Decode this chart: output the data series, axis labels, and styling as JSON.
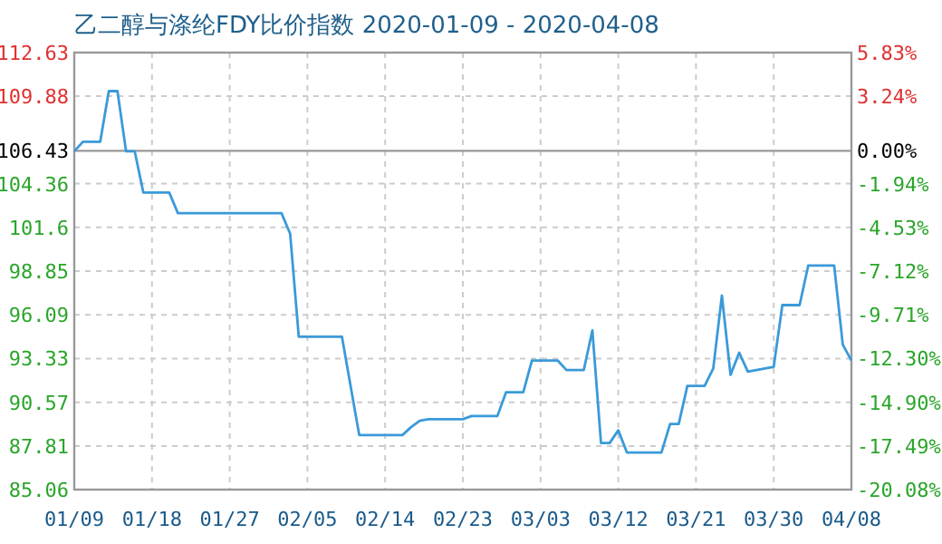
{
  "chart_data": {
    "type": "line",
    "title": "乙二醇与涤纶FDY比价指数 2020-01-09 - 2020-04-08",
    "x": [
      "2020-01-09",
      "2020-01-10",
      "2020-01-12",
      "2020-01-13",
      "2020-01-14",
      "2020-01-15",
      "2020-01-16",
      "2020-01-17",
      "2020-01-20",
      "2020-01-21",
      "2020-02-02",
      "2020-02-03",
      "2020-02-04",
      "2020-02-09",
      "2020-02-10",
      "2020-02-11",
      "2020-02-16",
      "2020-02-17",
      "2020-02-18",
      "2020-02-19",
      "2020-02-23",
      "2020-02-24",
      "2020-02-27",
      "2020-02-28",
      "2020-03-01",
      "2020-03-02",
      "2020-03-05",
      "2020-03-06",
      "2020-03-08",
      "2020-03-09",
      "2020-03-10",
      "2020-03-11",
      "2020-03-12",
      "2020-03-13",
      "2020-03-17",
      "2020-03-18",
      "2020-03-19",
      "2020-03-20",
      "2020-03-22",
      "2020-03-23",
      "2020-03-24",
      "2020-03-25",
      "2020-03-26",
      "2020-03-27",
      "2020-03-30",
      "2020-03-31",
      "2020-04-02",
      "2020-04-03",
      "2020-04-06",
      "2020-04-07",
      "2020-04-08"
    ],
    "series": [
      {
        "color": "#3a9ad9",
        "values": [
          106.4,
          107.0,
          107.0,
          110.2,
          110.2,
          106.4,
          106.4,
          103.8,
          103.8,
          102.5,
          102.5,
          101.2,
          94.7,
          94.7,
          91.6,
          88.5,
          88.5,
          89.0,
          89.4,
          89.5,
          89.5,
          89.7,
          89.7,
          91.2,
          91.2,
          93.2,
          93.2,
          92.6,
          92.6,
          95.1,
          88.0,
          88.0,
          88.8,
          87.4,
          87.4,
          89.2,
          89.2,
          91.6,
          91.6,
          92.7,
          97.3,
          92.3,
          93.7,
          92.5,
          92.8,
          96.7,
          96.7,
          99.2,
          99.2,
          94.2,
          93.2
        ]
      }
    ],
    "xlim": [
      "2020-01-09",
      "2020-04-08"
    ],
    "xticks": [
      {
        "value": "2020-01-09",
        "label": "01/09"
      },
      {
        "value": "2020-01-18",
        "label": "01/18"
      },
      {
        "value": "2020-01-27",
        "label": "01/27"
      },
      {
        "value": "2020-02-05",
        "label": "02/05"
      },
      {
        "value": "2020-02-14",
        "label": "02/14"
      },
      {
        "value": "2020-02-23",
        "label": "02/23"
      },
      {
        "value": "2020-03-03",
        "label": "03/03"
      },
      {
        "value": "2020-03-12",
        "label": "03/12"
      },
      {
        "value": "2020-03-21",
        "label": "03/21"
      },
      {
        "value": "2020-03-30",
        "label": "03/30"
      },
      {
        "value": "2020-04-08",
        "label": "04/08"
      }
    ],
    "ylim": [
      85.06,
      112.63
    ],
    "yticks": [
      85.06,
      87.81,
      90.57,
      93.33,
      96.09,
      98.85,
      101.6,
      104.36,
      106.43,
      109.88,
      112.63
    ],
    "y2lim": [
      -20.08,
      5.83
    ],
    "y2ticks": [
      {
        "value": -20.08,
        "label": "-20.08%"
      },
      {
        "value": -17.49,
        "label": "-17.49%"
      },
      {
        "value": -14.9,
        "label": "-14.90%"
      },
      {
        "value": -12.3,
        "label": "-12.30%"
      },
      {
        "value": -9.71,
        "label": "-9.71%"
      },
      {
        "value": -7.12,
        "label": "-7.12%"
      },
      {
        "value": -4.53,
        "label": "-4.53%"
      },
      {
        "value": -1.94,
        "label": "-1.94%"
      },
      {
        "value": 0,
        "label": "0.00%"
      },
      {
        "value": 3.24,
        "label": "3.24%"
      },
      {
        "value": 5.83,
        "label": "5.83%"
      }
    ],
    "grid": true,
    "ref_lines": [
      {
        "axis": "y",
        "value": 106.43,
        "color": "#999999"
      }
    ]
  }
}
